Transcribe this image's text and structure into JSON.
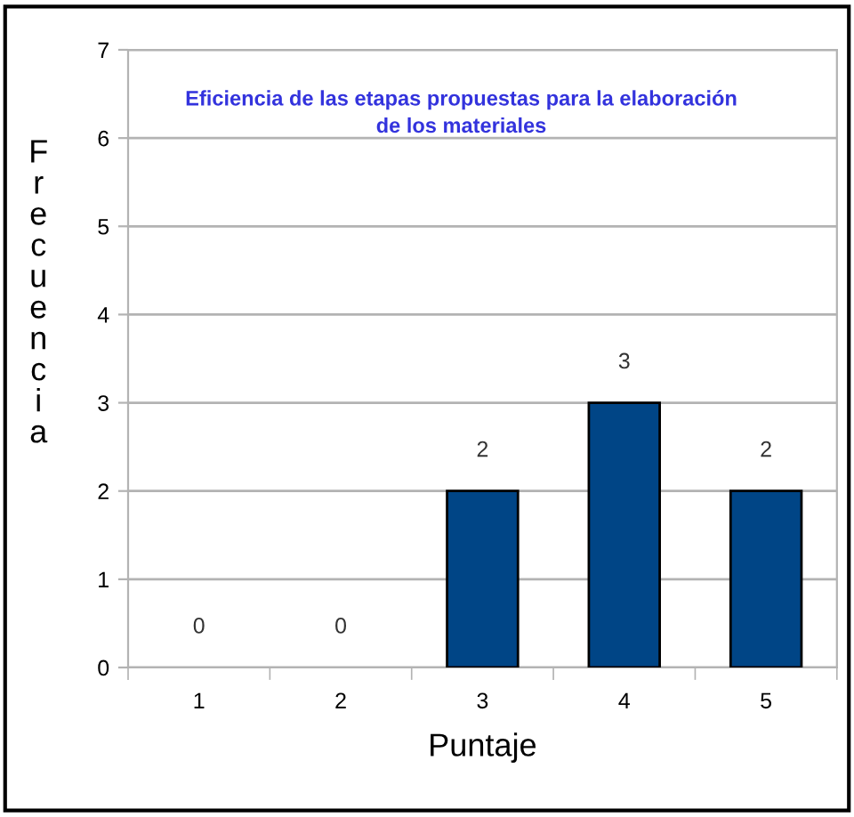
{
  "chart_data": {
    "type": "bar",
    "title": "Eficiencia de las etapas propuestas para la elaboración de los materiales",
    "xlabel": "Puntaje",
    "ylabel": "Frecuencia",
    "categories": [
      "1",
      "2",
      "3",
      "4",
      "5"
    ],
    "values": [
      0,
      0,
      2,
      3,
      2
    ],
    "color": "#004586",
    "ylim": [
      0,
      7
    ],
    "yticks": [
      0,
      1,
      2,
      3,
      4,
      5,
      6,
      7
    ],
    "grid": "y",
    "data_labels": true
  }
}
